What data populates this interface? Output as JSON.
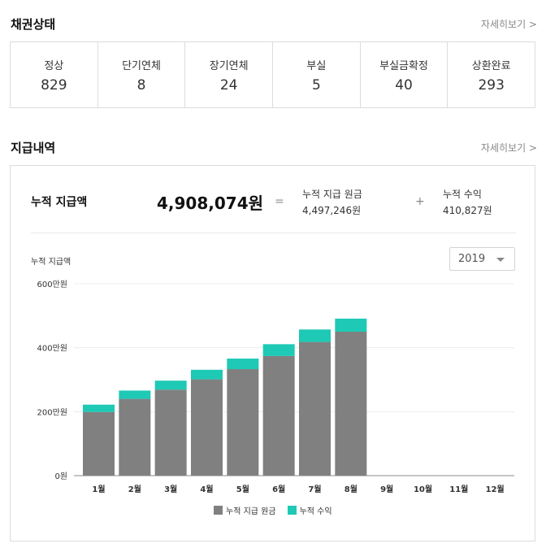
{
  "status": {
    "title": "채권상태",
    "detail_label": "자세히보기 >",
    "items": [
      {
        "label": "정상",
        "value": "829"
      },
      {
        "label": "단기연체",
        "value": "8"
      },
      {
        "label": "장기연체",
        "value": "24"
      },
      {
        "label": "부실",
        "value": "5"
      },
      {
        "label": "부실금확정",
        "value": "40"
      },
      {
        "label": "상환완료",
        "value": "293"
      }
    ]
  },
  "payments": {
    "title": "지급내역",
    "detail_label": "자세히보기 >",
    "summary": {
      "total_label": "누적 지급액",
      "total_value": "4,908,074원",
      "equals": "=",
      "plus": "+",
      "principal_label": "누적 지급 원금",
      "principal_value": "4,497,246원",
      "profit_label": "누적 수익",
      "profit_value": "410,827원"
    },
    "chart_label": "누적 지급액",
    "year_select": {
      "value": "2019"
    }
  },
  "chart_data": {
    "type": "bar",
    "stacked": true,
    "categories": [
      "1월",
      "2월",
      "3월",
      "4월",
      "5월",
      "6월",
      "7월",
      "8월",
      "9월",
      "10월",
      "11월",
      "12월"
    ],
    "series": [
      {
        "name": "누적 지급 원금",
        "color": "#808080",
        "values": [
          199,
          240,
          269,
          301,
          333,
          374,
          418,
          450,
          null,
          null,
          null,
          null
        ]
      },
      {
        "name": "누적 수익",
        "color": "#1ec9b5",
        "values": [
          23,
          26,
          28,
          30,
          33,
          37,
          39,
          41,
          null,
          null,
          null,
          null
        ]
      }
    ],
    "yticks": [
      {
        "value": 0,
        "label": "0원"
      },
      {
        "value": 200,
        "label": "200만원"
      },
      {
        "value": 400,
        "label": "400만원"
      },
      {
        "value": 600,
        "label": "600만원"
      }
    ],
    "ylim": [
      0,
      600
    ],
    "grid": true,
    "legend": "bottom-center"
  }
}
